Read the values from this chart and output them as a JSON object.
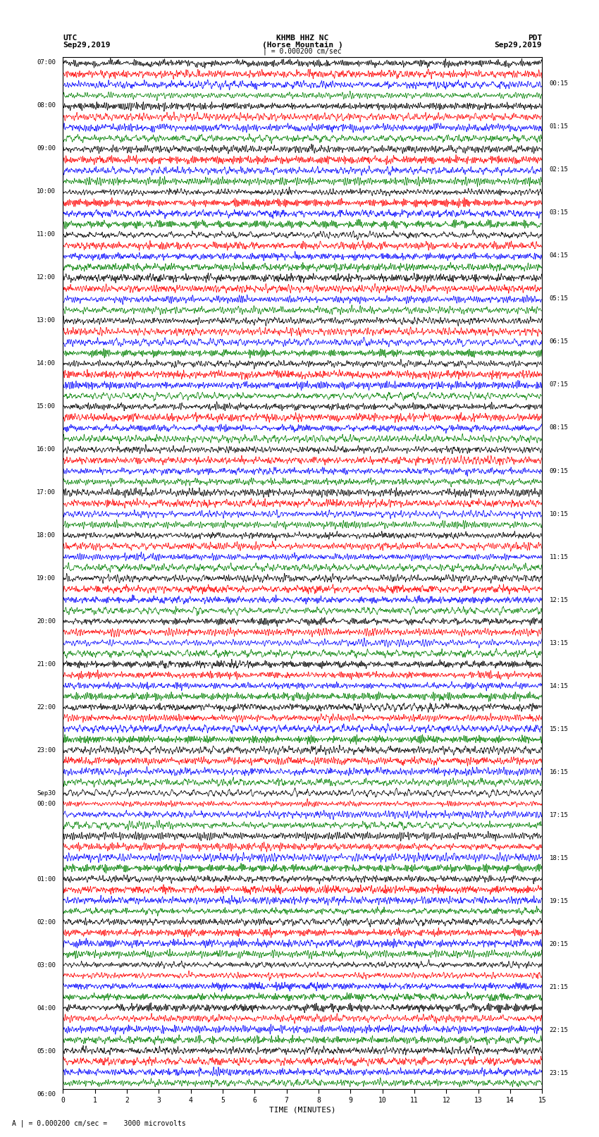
{
  "title_line1": "KHMB HHZ NC",
  "title_line2": "(Horse Mountain )",
  "title_line3": "| = 0.000200 cm/sec",
  "left_label_top": "UTC",
  "left_label_date": "Sep29,2019",
  "right_label_top": "PDT",
  "right_label_date": "Sep29,2019",
  "bottom_label": "TIME (MINUTES)",
  "bottom_note": "A | = 0.000200 cm/sec =    3000 microvolts",
  "left_times": [
    "07:00",
    "08:00",
    "09:00",
    "10:00",
    "11:00",
    "12:00",
    "13:00",
    "14:00",
    "15:00",
    "16:00",
    "17:00",
    "18:00",
    "19:00",
    "20:00",
    "21:00",
    "22:00",
    "23:00",
    "Sep30\n00:00",
    "01:00",
    "02:00",
    "03:00",
    "04:00",
    "05:00",
    "06:00"
  ],
  "right_times": [
    "00:15",
    "01:15",
    "02:15",
    "03:15",
    "04:15",
    "05:15",
    "06:15",
    "07:15",
    "08:15",
    "09:15",
    "10:15",
    "11:15",
    "12:15",
    "13:15",
    "14:15",
    "15:15",
    "16:15",
    "17:15",
    "18:15",
    "19:15",
    "20:15",
    "21:15",
    "22:15",
    "23:15"
  ],
  "colors": [
    "black",
    "red",
    "blue",
    "green"
  ],
  "n_rows": 96,
  "n_minutes": 15,
  "samples_per_minute": 200,
  "amplitude": 0.48,
  "linewidth": 0.5,
  "background_color": "white",
  "fig_width": 8.5,
  "fig_height": 16.13,
  "dpi": 100
}
